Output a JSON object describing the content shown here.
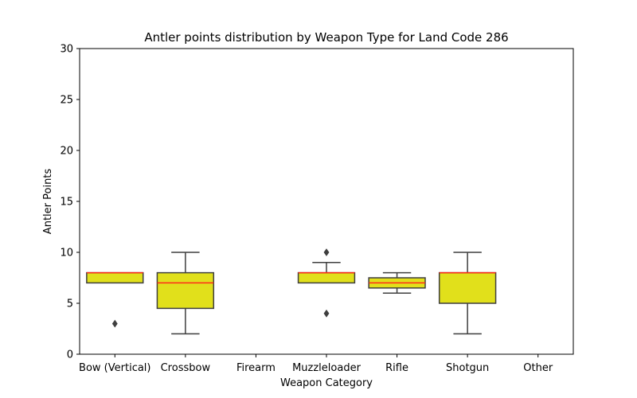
{
  "chart_data": {
    "type": "box",
    "title": "Antler points distribution by Weapon Type for Land Code 286",
    "xlabel": "Weapon Category",
    "ylabel": "Antler Points",
    "ylim": [
      0,
      30
    ],
    "yticks": [
      0,
      5,
      10,
      15,
      20,
      25,
      30
    ],
    "grid": false,
    "legend": "none",
    "categories": [
      "Bow (Vertical)",
      "Crossbow",
      "Firearm",
      "Muzzleloader",
      "Rifle",
      "Shotgun",
      "Other"
    ],
    "boxes": [
      {
        "category": "Bow (Vertical)",
        "whisker_low": 7,
        "q1": 7,
        "median": 8,
        "q3": 8,
        "whisker_high": 8,
        "outliers": [
          3
        ]
      },
      {
        "category": "Crossbow",
        "whisker_low": 2,
        "q1": 4.5,
        "median": 7,
        "q3": 8,
        "whisker_high": 10,
        "outliers": []
      },
      {
        "category": "Firearm",
        "empty": true
      },
      {
        "category": "Muzzleloader",
        "whisker_low": 7,
        "q1": 7,
        "median": 8,
        "q3": 8,
        "whisker_high": 9,
        "outliers": [
          10,
          4
        ]
      },
      {
        "category": "Rifle",
        "whisker_low": 6,
        "q1": 6.5,
        "median": 7,
        "q3": 7.5,
        "whisker_high": 8,
        "outliers": []
      },
      {
        "category": "Shotgun",
        "whisker_low": 2,
        "q1": 5,
        "median": 8,
        "q3": 8,
        "whisker_high": 10,
        "outliers": []
      },
      {
        "category": "Other",
        "empty": true
      }
    ],
    "colors": {
      "box_fill": "#e1e01b",
      "box_edge": "#3f3f3f",
      "median": "#ff2a1a",
      "axis": "#000000"
    }
  }
}
